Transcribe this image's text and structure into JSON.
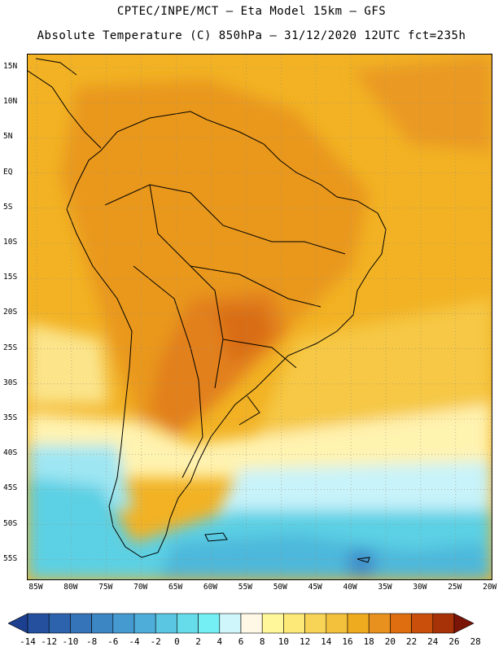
{
  "title_line1": "CPTEC/INPE/MCT –  Eta Model 15km – GFS",
  "title_line2": "Absolute Temperature (C) 850hPa – 31/12/2020 12UTC fct=235h",
  "lat_labels": [
    "15N",
    "10N",
    "5N",
    "EQ",
    "5S",
    "10S",
    "15S",
    "20S",
    "25S",
    "30S",
    "35S",
    "40S",
    "45S",
    "50S",
    "55S"
  ],
  "lon_labels": [
    "85W",
    "80W",
    "75W",
    "70W",
    "65W",
    "60W",
    "55W",
    "50W",
    "45W",
    "40W",
    "35W",
    "30W",
    "25W",
    "20W"
  ],
  "colorbar": {
    "labels": [
      "-14",
      "-12",
      "-10",
      "-8",
      "-6",
      "-4",
      "-2",
      "0",
      "2",
      "4",
      "6",
      "8",
      "10",
      "12",
      "14",
      "16",
      "18",
      "20",
      "22",
      "24",
      "26",
      "28"
    ],
    "colors": [
      "#1c3f8f",
      "#24509e",
      "#2d62ad",
      "#3574b8",
      "#3d86c4",
      "#459acf",
      "#4faed9",
      "#5ac6e2",
      "#66dbea",
      "#74f0f4",
      "#cff6fb",
      "#fff8e6",
      "#fff79a",
      "#fde978",
      "#f8d456",
      "#f4c13c",
      "#efab20",
      "#e8911e",
      "#df6e10",
      "#c94f0b",
      "#a83208",
      "#7b1508"
    ]
  }
}
